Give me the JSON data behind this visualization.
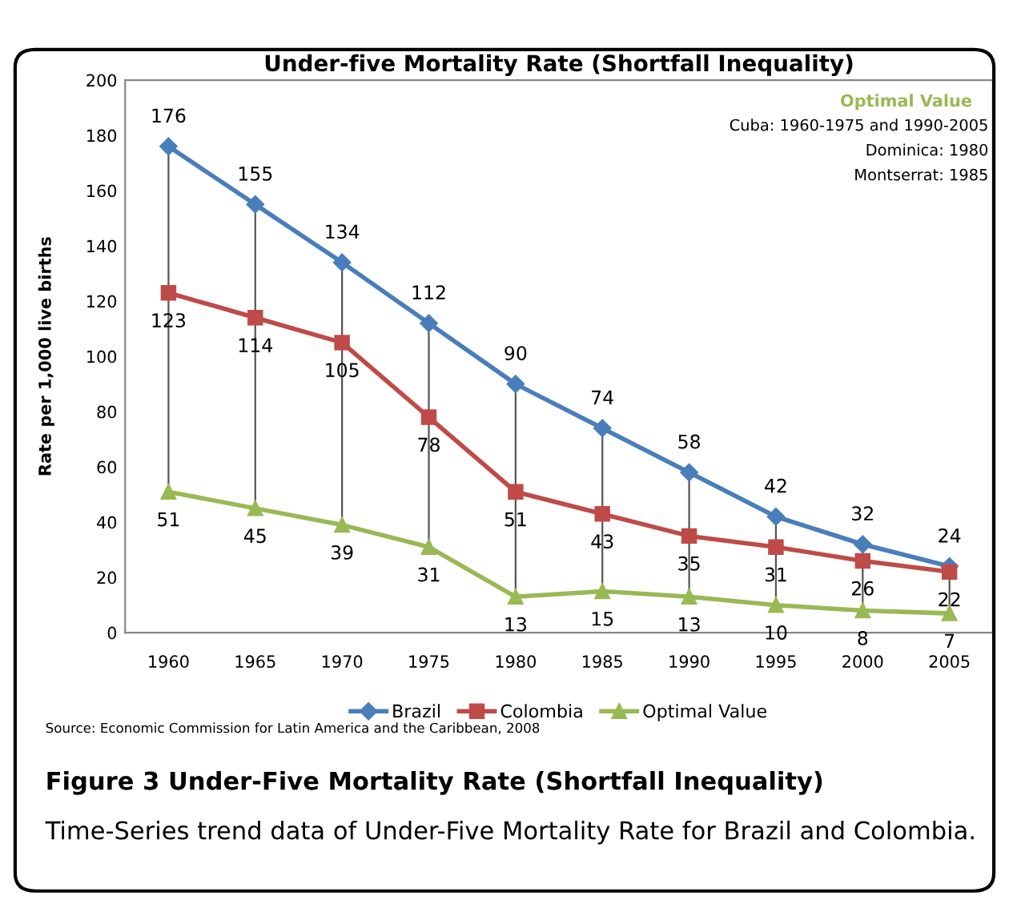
{
  "chart_data": {
    "type": "line",
    "title": "Under-five Mortality Rate (Shortfall Inequality)",
    "ylabel": "Rate per 1,000 live births",
    "categories": [
      "1960",
      "1965",
      "1970",
      "1975",
      "1980",
      "1985",
      "1990",
      "1995",
      "2000",
      "2005"
    ],
    "series": [
      {
        "name": "Brazil",
        "color": "#4a7ebb",
        "marker": "diamond",
        "values": [
          176,
          155,
          134,
          112,
          90,
          74,
          58,
          42,
          32,
          24
        ]
      },
      {
        "name": "Colombia",
        "color": "#be4b48",
        "marker": "square",
        "values": [
          123,
          114,
          105,
          78,
          51,
          43,
          35,
          31,
          26,
          22
        ]
      },
      {
        "name": "Optimal Value",
        "color": "#98b954",
        "marker": "triangle",
        "values": [
          51,
          45,
          39,
          31,
          13,
          15,
          13,
          10,
          8,
          7
        ]
      }
    ],
    "ylim": [
      0,
      200
    ],
    "yticks": [
      0,
      20,
      40,
      60,
      80,
      100,
      120,
      140,
      160,
      180,
      200
    ],
    "grid": false,
    "legend": "bottom",
    "data_labels": true,
    "line_style": "solid",
    "annotations": [
      "Optimal Value",
      "Cuba: 1960-1975 and 1990-2005",
      "Dominica: 1980",
      "Montserrat: 1985",
      "Source: Economic Commission for Latin America and the Caribbean, 2008",
      "Figure 3 Under-Five Mortality Rate (Shortfall Inequality)",
      "Time-Series trend data of Under-Five Mortality Rate for Brazil and Colombia."
    ]
  }
}
